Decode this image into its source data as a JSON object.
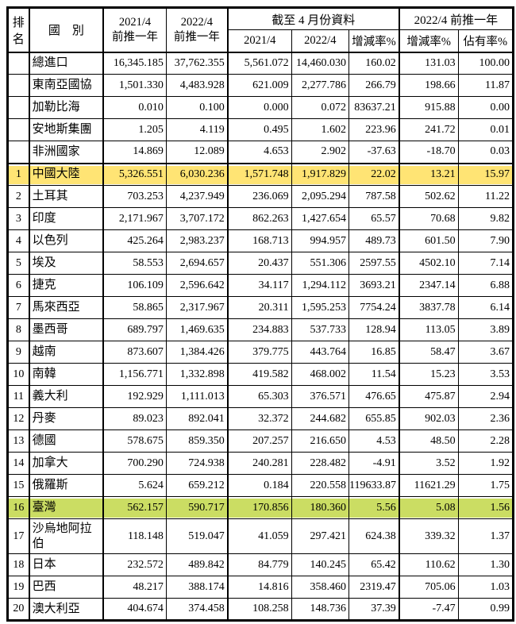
{
  "table": {
    "colors": {
      "highlight_yellow": "#FFE474",
      "highlight_green": "#CBDD63",
      "border": "#000000",
      "text": "#000000",
      "background": "#FFFFFF"
    },
    "header": {
      "rank": "排名",
      "country": "國　別",
      "prev2021": [
        "2021/4",
        "前推一年"
      ],
      "prev2022": [
        "2022/4",
        "前推一年"
      ],
      "group_april": "截至 4 月份資料",
      "group_2022prev": "2022/4 前推一年",
      "sub_2021": "2021/4",
      "sub_2022": "2022/4",
      "sub_change_april": "增減率%",
      "sub_change_prev": "增減率%",
      "sub_share": "佔有率%"
    },
    "rows": [
      {
        "rank": "",
        "country": "總進口",
        "values": [
          "16,345.185",
          "37,762.355",
          "5,561.072",
          "14,460.030",
          "160.02",
          "131.03",
          "100.00"
        ],
        "highlight": ""
      },
      {
        "rank": "",
        "country": "東南亞國協",
        "values": [
          "1,501.330",
          "4,483.928",
          "621.009",
          "2,277.786",
          "266.79",
          "198.66",
          "11.87"
        ],
        "highlight": ""
      },
      {
        "rank": "",
        "country": "加勒比海",
        "values": [
          "0.010",
          "0.100",
          "0.000",
          "0.072",
          "83637.21",
          "915.88",
          "0.00"
        ],
        "highlight": ""
      },
      {
        "rank": "",
        "country": "安地斯集團",
        "values": [
          "1.205",
          "4.119",
          "0.495",
          "1.602",
          "223.96",
          "241.72",
          "0.01"
        ],
        "highlight": ""
      },
      {
        "rank": "",
        "country": "非洲國家",
        "values": [
          "14.869",
          "12.089",
          "4.653",
          "2.902",
          "-37.63",
          "-18.70",
          "0.03"
        ],
        "highlight": ""
      },
      {
        "rank": "1",
        "country": "中國大陸",
        "values": [
          "5,326.551",
          "6,030.236",
          "1,571.748",
          "1,917.829",
          "22.02",
          "13.21",
          "15.97"
        ],
        "highlight": "yellow"
      },
      {
        "rank": "2",
        "country": "土耳其",
        "values": [
          "703.253",
          "4,237.949",
          "236.069",
          "2,095.294",
          "787.58",
          "502.62",
          "11.22"
        ],
        "highlight": ""
      },
      {
        "rank": "3",
        "country": "印度",
        "values": [
          "2,171.967",
          "3,707.172",
          "862.263",
          "1,427.654",
          "65.57",
          "70.68",
          "9.82"
        ],
        "highlight": ""
      },
      {
        "rank": "4",
        "country": "以色列",
        "values": [
          "425.264",
          "2,983.237",
          "168.713",
          "994.957",
          "489.73",
          "601.50",
          "7.90"
        ],
        "highlight": ""
      },
      {
        "rank": "5",
        "country": "埃及",
        "values": [
          "58.553",
          "2,694.657",
          "20.437",
          "551.306",
          "2597.55",
          "4502.10",
          "7.14"
        ],
        "highlight": ""
      },
      {
        "rank": "6",
        "country": "捷克",
        "values": [
          "106.109",
          "2,596.642",
          "34.117",
          "1,294.112",
          "3693.21",
          "2347.14",
          "6.88"
        ],
        "highlight": ""
      },
      {
        "rank": "7",
        "country": "馬來西亞",
        "values": [
          "58.865",
          "2,317.967",
          "20.311",
          "1,595.253",
          "7754.24",
          "3837.78",
          "6.14"
        ],
        "highlight": ""
      },
      {
        "rank": "8",
        "country": "墨西哥",
        "values": [
          "689.797",
          "1,469.635",
          "234.883",
          "537.733",
          "128.94",
          "113.05",
          "3.89"
        ],
        "highlight": ""
      },
      {
        "rank": "9",
        "country": "越南",
        "values": [
          "873.607",
          "1,384.426",
          "379.775",
          "443.764",
          "16.85",
          "58.47",
          "3.67"
        ],
        "highlight": ""
      },
      {
        "rank": "10",
        "country": "南韓",
        "values": [
          "1,156.771",
          "1,332.898",
          "419.582",
          "468.002",
          "11.54",
          "15.23",
          "3.53"
        ],
        "highlight": ""
      },
      {
        "rank": "11",
        "country": "義大利",
        "values": [
          "192.929",
          "1,111.013",
          "65.303",
          "376.571",
          "476.65",
          "475.87",
          "2.94"
        ],
        "highlight": ""
      },
      {
        "rank": "12",
        "country": "丹麥",
        "values": [
          "89.023",
          "892.041",
          "32.372",
          "244.682",
          "655.85",
          "902.03",
          "2.36"
        ],
        "highlight": ""
      },
      {
        "rank": "13",
        "country": "德國",
        "values": [
          "578.675",
          "859.350",
          "207.257",
          "216.650",
          "4.53",
          "48.50",
          "2.28"
        ],
        "highlight": ""
      },
      {
        "rank": "14",
        "country": "加拿大",
        "values": [
          "700.290",
          "724.938",
          "240.281",
          "228.482",
          "-4.91",
          "3.52",
          "1.92"
        ],
        "highlight": ""
      },
      {
        "rank": "15",
        "country": "俄羅斯",
        "values": [
          "5.624",
          "659.212",
          "0.184",
          "220.558",
          "119633.87",
          "11621.29",
          "1.75"
        ],
        "highlight": ""
      },
      {
        "rank": "16",
        "country": "臺灣",
        "values": [
          "562.157",
          "590.717",
          "170.856",
          "180.360",
          "5.56",
          "5.08",
          "1.56"
        ],
        "highlight": "green"
      },
      {
        "rank": "17",
        "country": "沙烏地阿拉伯",
        "values": [
          "118.148",
          "519.047",
          "41.059",
          "297.421",
          "624.38",
          "339.32",
          "1.37"
        ],
        "highlight": ""
      },
      {
        "rank": "18",
        "country": "日本",
        "values": [
          "232.572",
          "489.842",
          "84.779",
          "140.245",
          "65.42",
          "110.62",
          "1.30"
        ],
        "highlight": ""
      },
      {
        "rank": "19",
        "country": "巴西",
        "values": [
          "48.217",
          "388.174",
          "14.816",
          "358.460",
          "2319.47",
          "705.06",
          "1.03"
        ],
        "highlight": ""
      },
      {
        "rank": "20",
        "country": "澳大利亞",
        "values": [
          "404.674",
          "374.458",
          "108.258",
          "148.736",
          "37.39",
          "-7.47",
          "0.99"
        ],
        "highlight": ""
      }
    ]
  }
}
